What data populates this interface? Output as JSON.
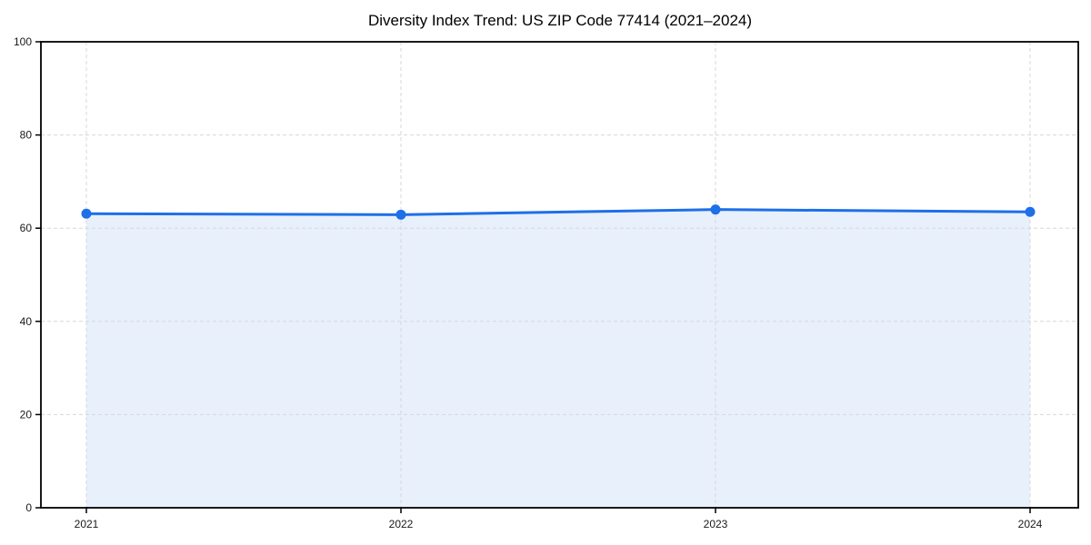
{
  "chart_data": {
    "type": "area",
    "title": "Diversity Index Trend: US ZIP Code 77414 (2021–2024)",
    "x": [
      "2021",
      "2022",
      "2023",
      "2024"
    ],
    "series": [
      {
        "name": "Diversity Index",
        "values": [
          63.1,
          62.9,
          64.0,
          63.5
        ]
      }
    ],
    "xlabel": "",
    "ylabel": "",
    "ylim": [
      0,
      100
    ],
    "yticks": [
      0,
      20,
      40,
      60,
      80,
      100
    ],
    "grid": "dashed-both-axes",
    "legend": "none",
    "colors": {
      "line": "#1e6fe8",
      "marker": "#1e6fe8",
      "fill": "#e8f0fc",
      "grid": "#d7d7d7",
      "spine": "#000000",
      "text": "#111111",
      "background": "#ffffff"
    }
  }
}
